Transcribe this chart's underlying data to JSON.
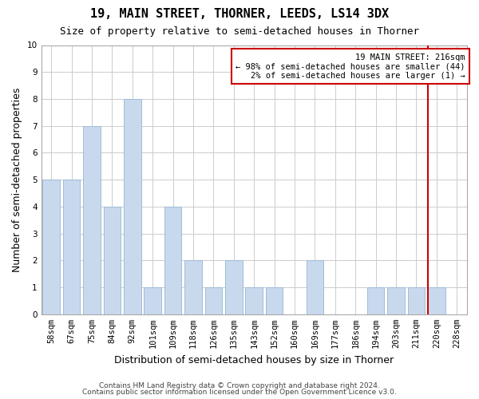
{
  "title": "19, MAIN STREET, THORNER, LEEDS, LS14 3DX",
  "subtitle": "Size of property relative to semi-detached houses in Thorner",
  "xlabel": "Distribution of semi-detached houses by size in Thorner",
  "ylabel": "Number of semi-detached properties",
  "footer1": "Contains HM Land Registry data © Crown copyright and database right 2024.",
  "footer2": "Contains public sector information licensed under the Open Government Licence v3.0.",
  "categories": [
    "58sqm",
    "67sqm",
    "75sqm",
    "84sqm",
    "92sqm",
    "101sqm",
    "109sqm",
    "118sqm",
    "126sqm",
    "135sqm",
    "143sqm",
    "152sqm",
    "160sqm",
    "169sqm",
    "177sqm",
    "186sqm",
    "194sqm",
    "203sqm",
    "211sqm",
    "220sqm",
    "228sqm"
  ],
  "values": [
    5,
    5,
    7,
    4,
    8,
    1,
    4,
    2,
    1,
    2,
    1,
    1,
    0,
    2,
    0,
    0,
    1,
    1,
    1,
    1,
    0
  ],
  "bar_color": "#c8d9ee",
  "bar_edge_color": "#9fbcd8",
  "grid_color": "#cccccc",
  "subject_line_color": "#cc0000",
  "annotation_line1": "19 MAIN STREET: 216sqm",
  "annotation_line2": "← 98% of semi-detached houses are smaller (44)",
  "annotation_line3": "2% of semi-detached houses are larger (1) →",
  "annotation_box_color": "#cc0000",
  "ylim": [
    0,
    10
  ],
  "yticks": [
    0,
    1,
    2,
    3,
    4,
    5,
    6,
    7,
    8,
    9,
    10
  ],
  "title_fontsize": 11,
  "subtitle_fontsize": 9,
  "ylabel_fontsize": 9,
  "xlabel_fontsize": 9,
  "tick_fontsize": 7.5,
  "annot_fontsize": 7.5,
  "footer_fontsize": 6.5
}
